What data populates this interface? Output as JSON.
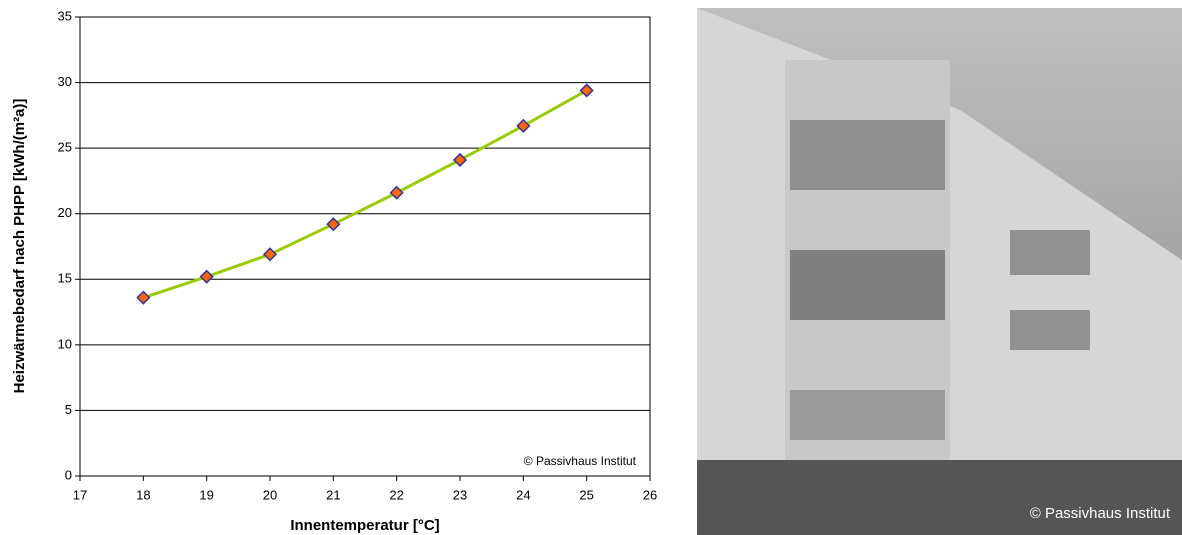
{
  "chart_data": {
    "type": "line",
    "x": [
      18,
      19,
      20,
      21,
      22,
      23,
      24,
      25
    ],
    "values": [
      13.6,
      15.2,
      16.9,
      19.2,
      21.6,
      24.1,
      26.7,
      29.4
    ],
    "color": "#99cc00",
    "marker_color": "#ff6600",
    "marker_edge_color": "#333399",
    "xlabel": "Innentemperatur [°C]",
    "ylabel": "Heizwärmebedarf nach PHPP [kWh/(m²a)]",
    "xlim": [
      17,
      26
    ],
    "xticks": [
      17,
      18,
      19,
      20,
      21,
      22,
      23,
      24,
      25,
      26
    ],
    "ylim": [
      0,
      35
    ],
    "yticks": [
      0,
      5,
      10,
      15,
      20,
      25,
      30,
      35
    ],
    "grid": true,
    "watermark": "© Passivhaus Institut"
  },
  "photo": {
    "caption": "© Passivhaus Institut"
  }
}
